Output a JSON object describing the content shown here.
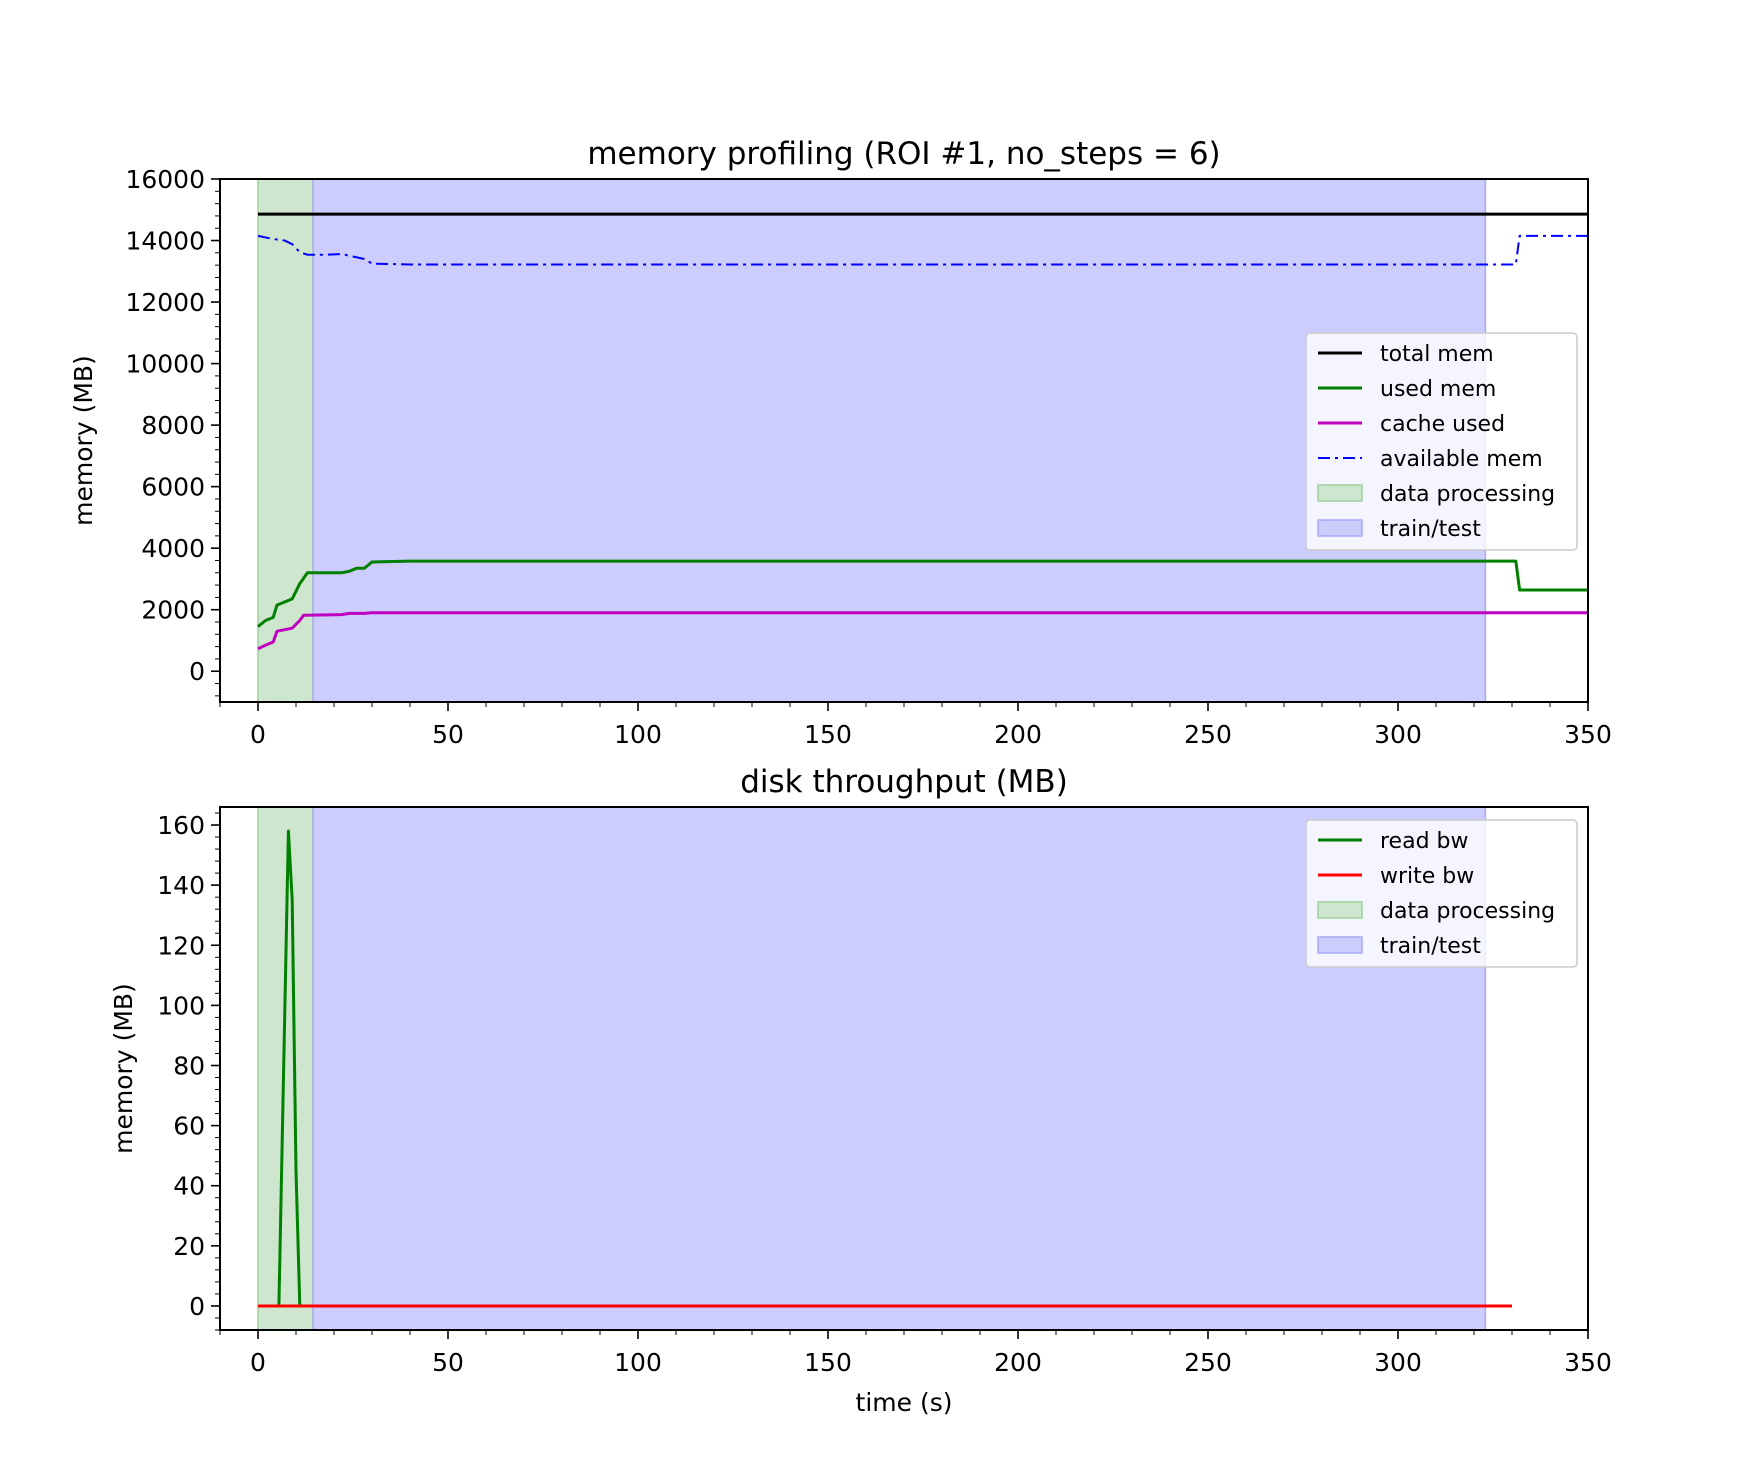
{
  "chart_data": [
    {
      "type": "line",
      "title": "memory profiling (ROI #1, no_steps = 6)",
      "xlabel": "",
      "ylabel": "memory (MB)",
      "xlim": [
        -10,
        350
      ],
      "ylim": [
        -1000,
        16000
      ],
      "xticks": [
        0,
        50,
        100,
        150,
        200,
        250,
        300,
        350
      ],
      "yticks": [
        0,
        2000,
        4000,
        6000,
        8000,
        10000,
        12000,
        14000,
        16000
      ],
      "grid": false,
      "legend_position": "right",
      "spans": [
        {
          "name": "data processing",
          "x0": 0,
          "x1": 14.5,
          "color": "#cde6cd",
          "edge": "#9fd09f"
        },
        {
          "name": "train/test",
          "x0": 14.5,
          "x1": 323,
          "color": "#ccccfd",
          "edge": "#a8a8f5"
        }
      ],
      "series": [
        {
          "name": "total mem",
          "color": "#000000",
          "dash": "solid",
          "width": 3,
          "points": [
            [
              0,
              14860
            ],
            [
              350,
              14860
            ]
          ]
        },
        {
          "name": "used mem",
          "color": "#008000",
          "dash": "solid",
          "width": 3,
          "points": [
            [
              0,
              1450
            ],
            [
              2,
              1650
            ],
            [
              4,
              1750
            ],
            [
              5,
              2150
            ],
            [
              7,
              2250
            ],
            [
              9,
              2350
            ],
            [
              11,
              2850
            ],
            [
              13,
              3200
            ],
            [
              18,
              3200
            ],
            [
              22,
              3200
            ],
            [
              24,
              3250
            ],
            [
              26,
              3350
            ],
            [
              28,
              3350
            ],
            [
              30,
              3550
            ],
            [
              40,
              3580
            ],
            [
              100,
              3580
            ],
            [
              200,
              3580
            ],
            [
              300,
              3580
            ],
            [
              331,
              3580
            ],
            [
              332,
              2640
            ],
            [
              350,
              2640
            ]
          ]
        },
        {
          "name": "cache used",
          "color": "#bf00bf",
          "dash": "solid",
          "width": 3,
          "points": [
            [
              0,
              730
            ],
            [
              2,
              850
            ],
            [
              4,
              950
            ],
            [
              5,
              1300
            ],
            [
              7,
              1350
            ],
            [
              9,
              1400
            ],
            [
              11,
              1650
            ],
            [
              12,
              1820
            ],
            [
              18,
              1830
            ],
            [
              22,
              1840
            ],
            [
              24,
              1880
            ],
            [
              28,
              1880
            ],
            [
              30,
              1900
            ],
            [
              40,
              1900
            ],
            [
              100,
              1900
            ],
            [
              200,
              1900
            ],
            [
              300,
              1900
            ],
            [
              350,
              1900
            ]
          ]
        },
        {
          "name": "available mem",
          "color": "#0000ff",
          "dash": "dashdot",
          "width": 2,
          "points": [
            [
              0,
              14150
            ],
            [
              4,
              14050
            ],
            [
              7,
              14000
            ],
            [
              9,
              13880
            ],
            [
              11,
              13620
            ],
            [
              13,
              13540
            ],
            [
              18,
              13540
            ],
            [
              22,
              13560
            ],
            [
              25,
              13480
            ],
            [
              28,
              13400
            ],
            [
              30,
              13250
            ],
            [
              40,
              13220
            ],
            [
              100,
              13220
            ],
            [
              200,
              13220
            ],
            [
              300,
              13220
            ],
            [
              331,
              13220
            ],
            [
              332,
              14150
            ],
            [
              350,
              14150
            ]
          ]
        }
      ],
      "legend": [
        "total mem",
        "used mem",
        "cache used",
        "available mem",
        "data processing",
        "train/test"
      ]
    },
    {
      "type": "line",
      "title": "disk throughput (MB)",
      "xlabel": "time (s)",
      "ylabel": "memory (MB)",
      "xlim": [
        -10,
        350
      ],
      "ylim": [
        -8,
        166
      ],
      "xticks": [
        0,
        50,
        100,
        150,
        200,
        250,
        300,
        350
      ],
      "yticks": [
        0,
        20,
        40,
        60,
        80,
        100,
        120,
        140,
        160
      ],
      "grid": false,
      "legend_position": "upper right",
      "spans": [
        {
          "name": "data processing",
          "x0": 0,
          "x1": 14.5,
          "color": "#cde6cd",
          "edge": "#9fd09f"
        },
        {
          "name": "train/test",
          "x0": 14.5,
          "x1": 323,
          "color": "#ccccfd",
          "edge": "#a8a8f5"
        }
      ],
      "series": [
        {
          "name": "read bw",
          "color": "#008000",
          "dash": "solid",
          "width": 3,
          "points": [
            [
              0,
              0
            ],
            [
              5.5,
              0
            ],
            [
              8,
              158
            ],
            [
              9,
              135
            ],
            [
              10,
              45
            ],
            [
              11,
              0
            ],
            [
              20,
              0
            ],
            [
              100,
              0
            ],
            [
              200,
              0
            ],
            [
              300,
              0
            ],
            [
              330,
              0
            ]
          ]
        },
        {
          "name": "write bw",
          "color": "#ff0000",
          "dash": "solid",
          "width": 3,
          "points": [
            [
              0,
              0
            ],
            [
              50,
              0
            ],
            [
              100,
              0
            ],
            [
              150,
              0
            ],
            [
              200,
              0
            ],
            [
              250,
              0
            ],
            [
              300,
              0
            ],
            [
              330,
              0
            ]
          ]
        }
      ],
      "legend": [
        "read bw",
        "write bw",
        "data processing",
        "train/test"
      ]
    }
  ]
}
